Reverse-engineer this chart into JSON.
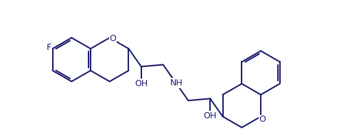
{
  "bg": "#ffffff",
  "lc": "#1a1a6e",
  "lw": 1.5,
  "fs": 8.5,
  "figsize": [
    4.94,
    1.96
  ],
  "dpi": 100,
  "BL": 0.37,
  "F_label": "F",
  "O_label": "O",
  "NH_label": "NH",
  "OH_label": "OH",
  "xlim": [
    0.0,
    4.94
  ],
  "ylim": [
    -0.15,
    2.1
  ]
}
